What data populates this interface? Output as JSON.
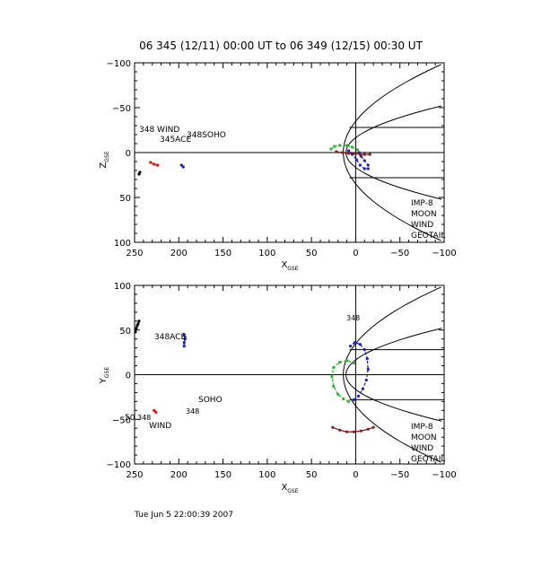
{
  "title": "06 345 (12/11) 00:00 UT to 06 349 (12/15) 00:30 UT",
  "timestamp": "Tue Jun  5 22:00:39 2007",
  "colors": {
    "imp8": "#1a1ad8",
    "moon": "#8b1a1a",
    "wind": "#000000",
    "geotail": "#22bb22",
    "ace": "#e01010",
    "soho": "#1a1ad8"
  },
  "chart_data": [
    {
      "type": "line",
      "xlabel": "X",
      "xlabel_sub": "GSE",
      "ylabel": "Z",
      "ylabel_sub": "GSE",
      "xlim": [
        250,
        -100
      ],
      "ylim": [
        -100,
        100
      ],
      "xticks": [
        "250",
        "200",
        "150",
        "100",
        "50",
        "0",
        "−50",
        "−100"
      ],
      "yticks": [
        "100",
        "50",
        "0",
        "−50",
        "−100"
      ],
      "legend": [
        "IMP-8",
        "MOON",
        "WIND",
        "GEOTAIL"
      ],
      "labels": {
        "wind": "348 WIND",
        "ace": "345ACE",
        "soho": "348SOHO"
      },
      "series": [
        {
          "name": "WIND",
          "x": [
            245,
            244
          ],
          "y": [
            24,
            22
          ]
        },
        {
          "name": "ACE",
          "x": [
            232,
            228,
            224
          ],
          "y": [
            11,
            13,
            14
          ]
        },
        {
          "name": "SOHO",
          "x": [
            197,
            195
          ],
          "y": [
            14,
            16
          ]
        },
        {
          "name": "IMP-8",
          "x": [
            -4,
            -6,
            -10,
            -14,
            -14,
            -10,
            -5,
            -1,
            4,
            8
          ],
          "y": [
            0,
            4,
            9,
            14,
            18,
            18,
            14,
            8,
            2,
            -2
          ]
        },
        {
          "name": "MOON",
          "x": [
            22,
            15,
            8,
            1,
            -5,
            -10,
            -16
          ],
          "y": [
            -1,
            0,
            1,
            1,
            2,
            2,
            2
          ]
        },
        {
          "name": "GEOTAIL",
          "x": [
            28,
            24,
            18,
            10,
            4,
            -2
          ],
          "y": [
            -4,
            -7,
            -8,
            -8,
            -6,
            -3
          ]
        }
      ]
    },
    {
      "type": "line",
      "xlabel": "X",
      "xlabel_sub": "GSE",
      "ylabel": "Y",
      "ylabel_sub": "GSE",
      "xlim": [
        250,
        -100
      ],
      "ylim": [
        100,
        -100
      ],
      "xticks": [
        "250",
        "200",
        "150",
        "100",
        "50",
        "0",
        "−50",
        "−100"
      ],
      "yticks": [
        "−100",
        "−50",
        "0",
        "50",
        "100"
      ],
      "legend": [
        "IMP-8",
        "MOON",
        "WIND",
        "GEOTAIL"
      ],
      "labels": {
        "wind": "WIND",
        "wind_num": "50",
        "wind_num2": "348",
        "ace": "348ACE",
        "soho": "SOHO",
        "soho_num": "348",
        "moon": "348"
      },
      "series": [
        {
          "name": "WIND",
          "x": [
            249,
            248,
            247,
            246,
            245
          ],
          "y": [
            48,
            52,
            55,
            57,
            60
          ]
        },
        {
          "name": "ACE",
          "x": [
            228,
            226
          ],
          "y": [
            -40,
            -42
          ]
        },
        {
          "name": "SOHO",
          "x": [
            194,
            194,
            193,
            193,
            194
          ],
          "y": [
            32,
            36,
            40,
            42,
            45
          ]
        },
        {
          "name": "MOON",
          "x": [
            26,
            18,
            10,
            2,
            -6,
            -14,
            -20
          ],
          "y": [
            -59,
            -62,
            -64,
            -64,
            -63,
            -61,
            -59
          ]
        },
        {
          "name": "IMP-8",
          "x": [
            2,
            -3,
            -8,
            -12,
            -14,
            -13,
            -10,
            -5,
            1,
            6
          ],
          "y": [
            -28,
            -24,
            -16,
            -6,
            6,
            18,
            28,
            34,
            36,
            32
          ]
        },
        {
          "name": "GEOTAIL",
          "x": [
            8,
            14,
            20,
            25,
            27,
            25,
            18,
            10,
            2
          ],
          "y": [
            -30,
            -27,
            -22,
            -13,
            -2,
            8,
            14,
            16,
            13
          ]
        }
      ]
    }
  ]
}
